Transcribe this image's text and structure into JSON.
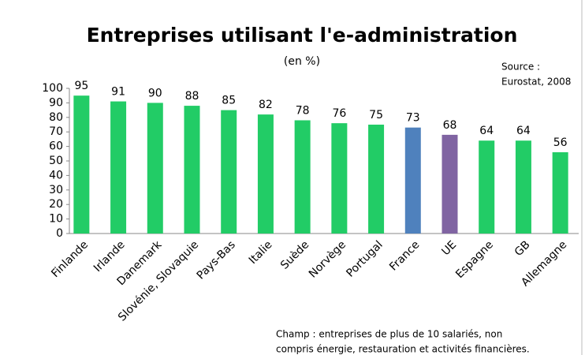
{
  "chart_data": {
    "type": "bar",
    "title": "Entreprises utilisant l'e-administration",
    "subtitle": "(en %)",
    "source": [
      "Source :",
      "Eurostat, 2008"
    ],
    "note": [
      "Champ : entreprises de plus de 10 salariés, non",
      "compris énergie, restauration et activités financières."
    ],
    "categories": [
      "Finlande",
      "Irlande",
      "Danemark",
      "Slovénie, Slovaquie",
      "Pays-Bas",
      "Italie",
      "Suède",
      "Norvège",
      "Portugal",
      "France",
      "UE",
      "Espagne",
      "GB",
      "Allemagne"
    ],
    "values": [
      95,
      91,
      90,
      88,
      85,
      82,
      78,
      76,
      75,
      73,
      68,
      64,
      64,
      56
    ],
    "colors": [
      "#22cc66",
      "#22cc66",
      "#22cc66",
      "#22cc66",
      "#22cc66",
      "#22cc66",
      "#22cc66",
      "#22cc66",
      "#22cc66",
      "#4f81bd",
      "#8064a2",
      "#22cc66",
      "#22cc66",
      "#22cc66"
    ],
    "ylim": [
      0,
      100
    ],
    "yticks": [
      0,
      10,
      20,
      30,
      40,
      50,
      60,
      70,
      80,
      90,
      100
    ],
    "grid": false
  }
}
